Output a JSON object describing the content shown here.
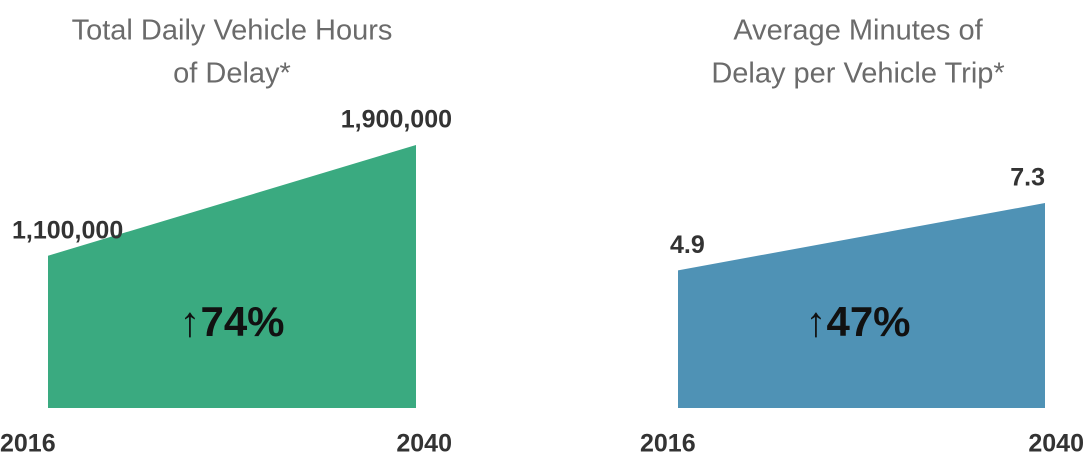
{
  "chart_data": [
    {
      "type": "area",
      "title": [
        "Total Daily Vehicle Hours",
        "of Delay*"
      ],
      "categories": [
        "2016",
        "2040"
      ],
      "values": [
        1100000,
        1900000
      ],
      "value_labels": [
        "1,100,000",
        "1,900,000"
      ],
      "annotation": "↑74%",
      "color": "#3aaa80"
    },
    {
      "type": "area",
      "title": [
        "Average Minutes of",
        "Delay per Vehicle Trip*"
      ],
      "categories": [
        "2016",
        "2040"
      ],
      "values": [
        4.9,
        7.3
      ],
      "annotation": "↑47%",
      "color": "#4f92b5"
    }
  ]
}
